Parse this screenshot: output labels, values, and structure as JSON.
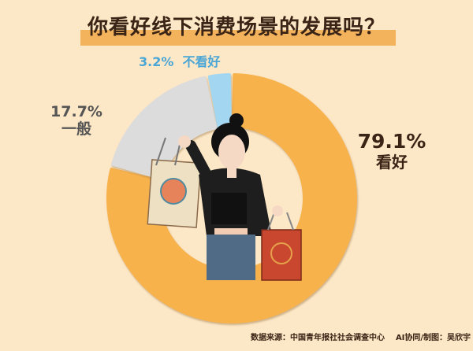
{
  "chart_data": {
    "type": "pie",
    "donut": true,
    "title": "你看好线下消费场景的发展吗？",
    "categories": [
      "看好",
      "一般",
      "不看好"
    ],
    "values": [
      79.1,
      17.7,
      3.2
    ],
    "value_labels": [
      "79.1%",
      "17.7%",
      "3.2%"
    ],
    "colors": [
      "#f8b24c",
      "#dcdcdc",
      "#a3d6f0"
    ],
    "unit": "%"
  },
  "footer": {
    "source": "数据来源：中国青年报社社会调查中心",
    "credit": "AI协同/制图：吴欣宇"
  },
  "colors": {
    "background": "#fce7c6",
    "title_bar": "#f3b25c",
    "title_text": "#3a2416"
  }
}
